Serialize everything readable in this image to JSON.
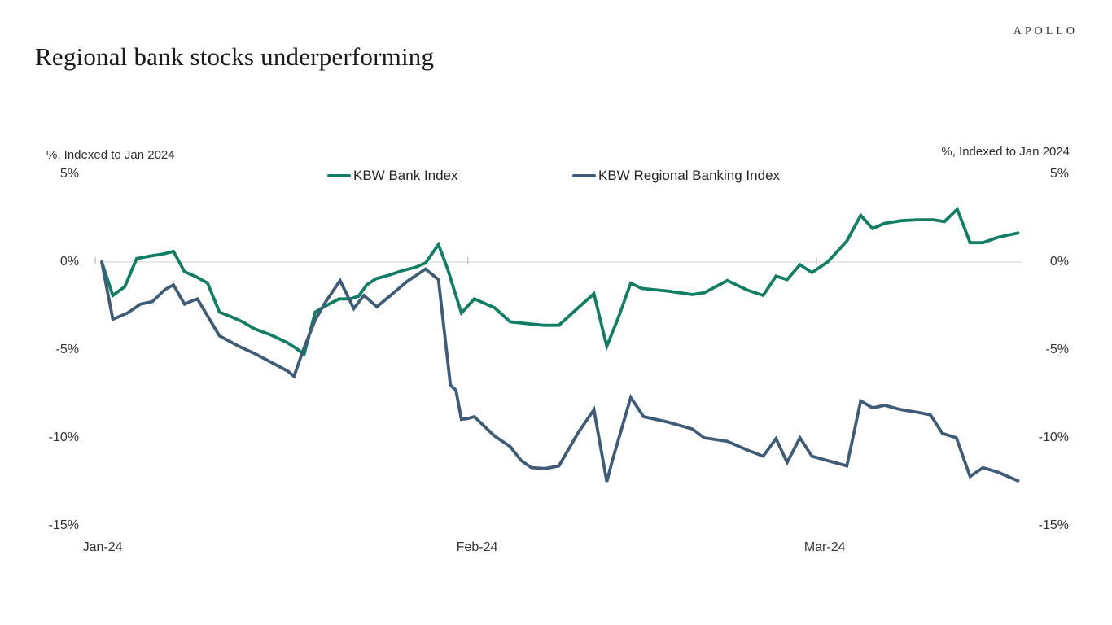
{
  "header": {
    "brand": "APOLLO",
    "title": "Regional bank stocks underperforming"
  },
  "chart_data": {
    "type": "line",
    "title": "Regional bank stocks underperforming",
    "axis_label_left": "%, Indexed to Jan 2024",
    "axis_label_right": "%, Indexed to Jan 2024",
    "x_axis_note": "x = percent of distance along the time axis, Jan-24 through late Mar-24; y = percent return indexed to Jan 2024",
    "ylim": [
      -15.65,
      6.11
    ],
    "grid": "horizontal gridline at 0% only",
    "legend_position": "top-center",
    "y_ticks": [
      {
        "value": 5,
        "label": "5%"
      },
      {
        "value": 0,
        "label": "0%",
        "gridline": true
      },
      {
        "value": -5,
        "label": "-5%"
      },
      {
        "value": -10,
        "label": "-10%"
      },
      {
        "value": -15,
        "label": "-15%"
      }
    ],
    "x_ticks": [
      {
        "label": "Jan-24",
        "label_pos": 0.1,
        "tick_pos": -0.7
      },
      {
        "label": "Feb-24",
        "label_pos": 40.8,
        "tick_pos": 39.8
      },
      {
        "label": "Mar-24",
        "label_pos": 78.6,
        "tick_pos": 77.7
      }
    ],
    "series": [
      {
        "name": "KBW Bank Index",
        "color": "#0f7e63",
        "points": [
          [
            0,
            0
          ],
          [
            1.2,
            -1.9
          ],
          [
            2.5,
            -1.4
          ],
          [
            3.8,
            0.2
          ],
          [
            5.4,
            0.35
          ],
          [
            6.6,
            0.45
          ],
          [
            7.8,
            0.6
          ],
          [
            9,
            -0.55
          ],
          [
            10.3,
            -0.85
          ],
          [
            11.5,
            -1.2
          ],
          [
            12.8,
            -2.85
          ],
          [
            14,
            -3.1
          ],
          [
            15.3,
            -3.4
          ],
          [
            16.6,
            -3.8
          ],
          [
            18.4,
            -4.15
          ],
          [
            20.2,
            -4.6
          ],
          [
            21.1,
            -4.9
          ],
          [
            22,
            -5.25
          ],
          [
            23.2,
            -2.85
          ],
          [
            24.3,
            -2.5
          ],
          [
            25.8,
            -2.1
          ],
          [
            27,
            -2.1
          ],
          [
            27.9,
            -1.95
          ],
          [
            28.8,
            -1.3
          ],
          [
            29.8,
            -0.95
          ],
          [
            31.2,
            -0.75
          ],
          [
            32.6,
            -0.5
          ],
          [
            34.1,
            -0.3
          ],
          [
            35.2,
            -0.05
          ],
          [
            36.6,
            1.0
          ],
          [
            37.6,
            -0.4
          ],
          [
            39.1,
            -2.9
          ],
          [
            40.5,
            -2.1
          ],
          [
            42.7,
            -2.6
          ],
          [
            44.4,
            -3.4
          ],
          [
            46.2,
            -3.5
          ],
          [
            48,
            -3.6
          ],
          [
            49.7,
            -3.6
          ],
          [
            51.8,
            -2.6
          ],
          [
            53.5,
            -1.8
          ],
          [
            54.9,
            -4.8
          ],
          [
            56.2,
            -3.1
          ],
          [
            57.5,
            -1.2
          ],
          [
            58.7,
            -1.5
          ],
          [
            61.5,
            -1.65
          ],
          [
            64.2,
            -1.85
          ],
          [
            65.5,
            -1.75
          ],
          [
            68,
            -1.05
          ],
          [
            70.2,
            -1.6
          ],
          [
            71.9,
            -1.9
          ],
          [
            73.3,
            -0.8
          ],
          [
            74.5,
            -1.0
          ],
          [
            75.9,
            -0.15
          ],
          [
            77.2,
            -0.6
          ],
          [
            78.9,
            0
          ],
          [
            81,
            1.2
          ],
          [
            82.5,
            2.65
          ],
          [
            83.8,
            1.9
          ],
          [
            85.1,
            2.2
          ],
          [
            86.9,
            2.35
          ],
          [
            88.7,
            2.4
          ],
          [
            90.4,
            2.4
          ],
          [
            91.6,
            2.3
          ],
          [
            93,
            3.0
          ],
          [
            94.4,
            1.1
          ],
          [
            95.8,
            1.1
          ],
          [
            97.4,
            1.4
          ],
          [
            99.6,
            1.65
          ]
        ]
      },
      {
        "name": "KBW Regional Banking Index",
        "color": "#3e5c78",
        "points": [
          [
            0,
            0
          ],
          [
            1.2,
            -3.25
          ],
          [
            2.8,
            -2.9
          ],
          [
            4.2,
            -2.4
          ],
          [
            5.5,
            -2.25
          ],
          [
            6.9,
            -1.55
          ],
          [
            7.8,
            -1.3
          ],
          [
            9,
            -2.4
          ],
          [
            9.6,
            -2.25
          ],
          [
            10.4,
            -2.1
          ],
          [
            12.8,
            -4.2
          ],
          [
            14.9,
            -4.8
          ],
          [
            16.6,
            -5.2
          ],
          [
            18.4,
            -5.7
          ],
          [
            20.2,
            -6.2
          ],
          [
            20.9,
            -6.5
          ],
          [
            21.9,
            -5.0
          ],
          [
            23.2,
            -3.3
          ],
          [
            24.3,
            -2.3
          ],
          [
            25.9,
            -1.05
          ],
          [
            27.4,
            -2.65
          ],
          [
            28.5,
            -1.9
          ],
          [
            29.9,
            -2.55
          ],
          [
            31.4,
            -1.9
          ],
          [
            33.2,
            -1.1
          ],
          [
            35.2,
            -0.4
          ],
          [
            36.6,
            -1.0
          ],
          [
            37.9,
            -7.0
          ],
          [
            38.5,
            -7.3
          ],
          [
            39.1,
            -8.95
          ],
          [
            39.8,
            -8.9
          ],
          [
            40.5,
            -8.8
          ],
          [
            42.7,
            -9.9
          ],
          [
            44.4,
            -10.5
          ],
          [
            45.6,
            -11.3
          ],
          [
            46.7,
            -11.7
          ],
          [
            48.2,
            -11.75
          ],
          [
            49.7,
            -11.6
          ],
          [
            51.8,
            -9.7
          ],
          [
            53.5,
            -8.4
          ],
          [
            54.9,
            -12.5
          ],
          [
            55.5,
            -11.3
          ],
          [
            57.5,
            -7.7
          ],
          [
            58.9,
            -8.8
          ],
          [
            61.5,
            -9.1
          ],
          [
            64.2,
            -9.5
          ],
          [
            65.5,
            -10.0
          ],
          [
            68,
            -10.2
          ],
          [
            70.2,
            -10.7
          ],
          [
            71.9,
            -11.05
          ],
          [
            73.3,
            -10.05
          ],
          [
            74.5,
            -11.4
          ],
          [
            75.9,
            -10.0
          ],
          [
            77.2,
            -11.05
          ],
          [
            78.9,
            -11.3
          ],
          [
            81,
            -11.6
          ],
          [
            82.5,
            -7.9
          ],
          [
            83.8,
            -8.3
          ],
          [
            85.1,
            -8.15
          ],
          [
            86.9,
            -8.4
          ],
          [
            88.7,
            -8.55
          ],
          [
            90.1,
            -8.7
          ],
          [
            91.4,
            -9.75
          ],
          [
            92.9,
            -10.0
          ],
          [
            94.4,
            -12.2
          ],
          [
            95.8,
            -11.7
          ],
          [
            97.4,
            -11.95
          ],
          [
            99.6,
            -12.45
          ]
        ]
      }
    ]
  }
}
